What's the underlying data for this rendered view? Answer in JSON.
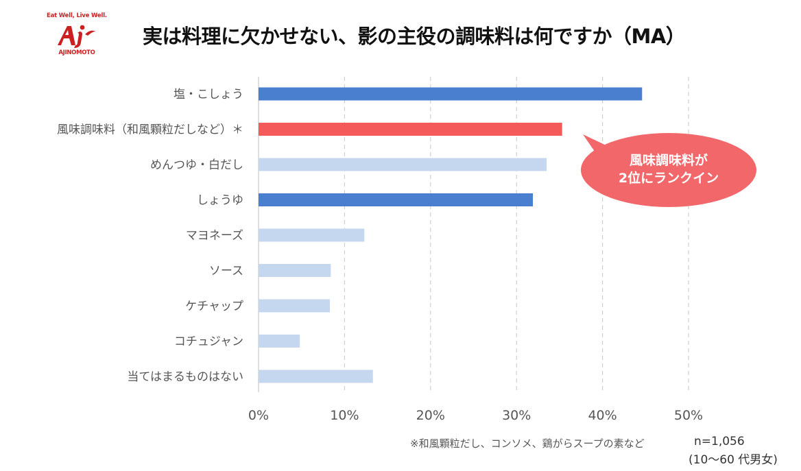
{
  "logo": {
    "tagline": "Eat Well, Live Well.",
    "brand": "AJINOMOTO",
    "mark": "Aj"
  },
  "title": "実は料理に欠かせない、影の主役の調味料は何ですか（MA）",
  "chart_data": {
    "type": "bar",
    "orientation": "horizontal",
    "title": "実は料理に欠かせない、影の主役の調味料は何ですか（MA）",
    "categories": [
      "塩・こしょう",
      "風味調味料（和風顆粒だしなど）＊",
      "めんつゆ・白だし",
      "しょうゆ",
      "マヨネーズ",
      "ソース",
      "ケチャップ",
      "コチュジャン",
      "当てはまるものはない"
    ],
    "values": [
      44.6,
      35.3,
      33.5,
      31.9,
      12.3,
      8.4,
      8.3,
      4.8,
      13.3
    ],
    "bar_colors": [
      "#4a7fcf",
      "#f45a5a",
      "#c5d7ef",
      "#4a7fcf",
      "#c5d7ef",
      "#c5d7ef",
      "#c5d7ef",
      "#c5d7ef",
      "#c5d7ef"
    ],
    "xlim": [
      0,
      50
    ],
    "xticks": [
      0,
      10,
      20,
      30,
      40,
      50
    ],
    "xtick_labels": [
      "0%",
      "10%",
      "20%",
      "30%",
      "40%",
      "50%"
    ],
    "grid": "vertical-dashed",
    "xlabel": "",
    "ylabel": "",
    "annotation": {
      "lines": [
        "風味調味料が",
        "2位にランクイン"
      ],
      "color": "#f2676a",
      "points_to": "風味調味料（和風顆粒だしなど）＊"
    }
  },
  "footnote": "※和風顆粒だし、コンソメ、鶏がらスープの素など",
  "sample": {
    "n": "n=1,056",
    "group": "(10～60 代男女)"
  }
}
